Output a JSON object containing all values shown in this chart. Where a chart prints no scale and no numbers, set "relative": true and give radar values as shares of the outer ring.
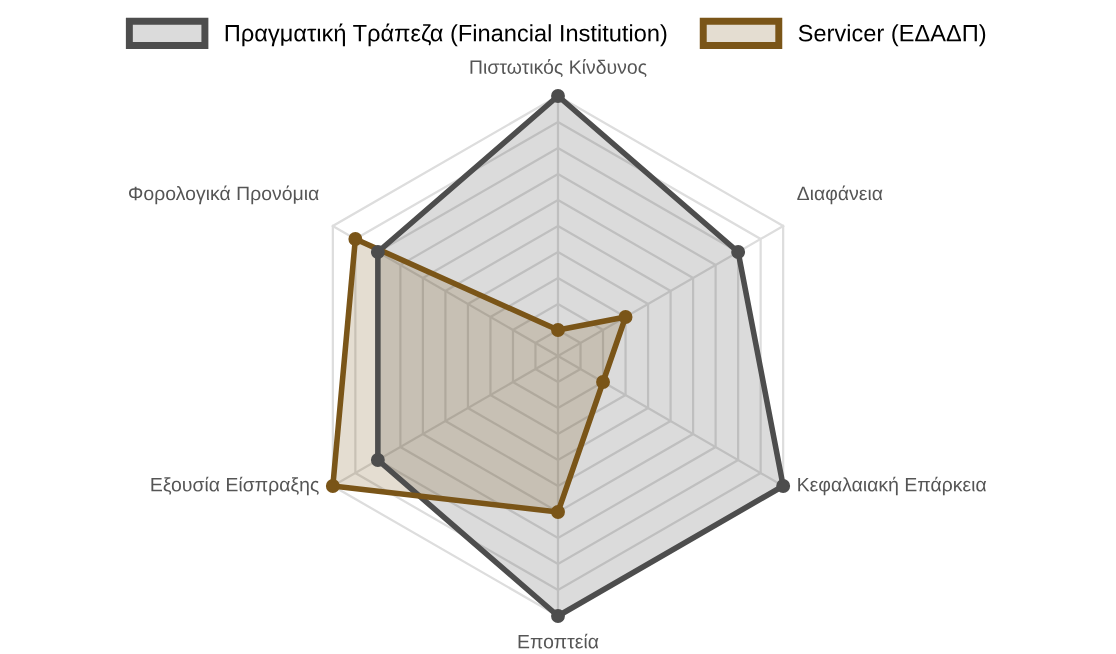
{
  "chart_data": {
    "type": "radar",
    "relative": true,
    "grid": true,
    "legend": "top",
    "marker": "circle",
    "categories": [
      "Πιστωτικός Κίνδυνος",
      "Διαφάνεια",
      "Κεφαλαιακή Επάρκεια",
      "Εποπτεία",
      "Εξουσία Είσπραξης",
      "Φορολογικά Προνόμια"
    ],
    "series": [
      {
        "name": "Πραγματική Τράπεζα (Financial Institution)",
        "color": "#4d4d4d",
        "values": [
          1.0,
          0.8,
          1.0,
          1.0,
          0.8,
          0.8
        ]
      },
      {
        "name": "Servicer (ΕΔΑΔΠ)",
        "color": "#7a5518",
        "values": [
          0.1,
          0.3,
          0.2,
          0.6,
          1.0,
          0.9
        ]
      }
    ]
  }
}
